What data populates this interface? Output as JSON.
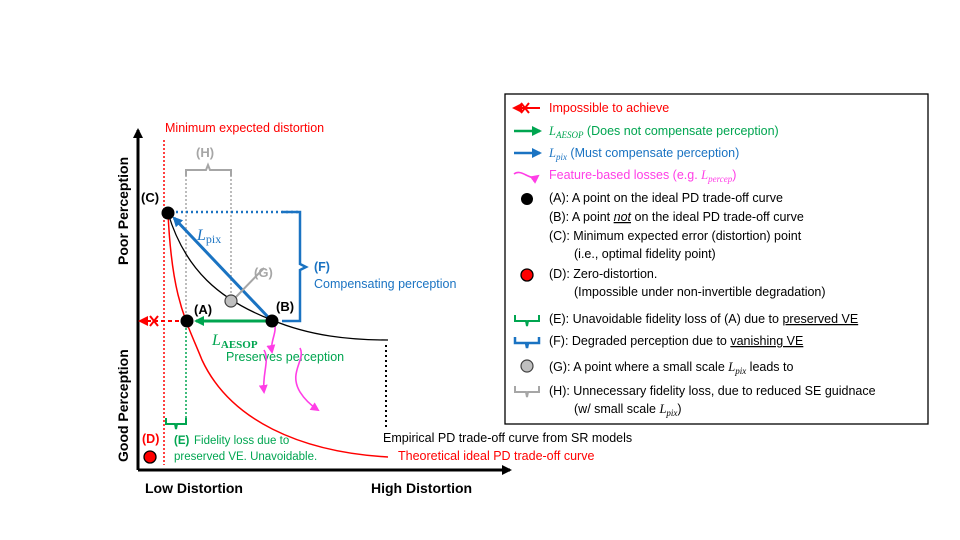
{
  "axes": {
    "y_top": "Poor Perception",
    "y_bottom": "Good Perception",
    "x_left": "Low Distortion",
    "x_right": "High Distortion"
  },
  "min_distortion_label": "Minimum expected distortion",
  "points": {
    "A": "(A)",
    "B": "(B)",
    "C": "(C)",
    "D": "(D)",
    "G": "(G)",
    "H": "(H)"
  },
  "annotations": {
    "l_pix": "L",
    "l_pix_sub": "pix",
    "l_aesop": "L",
    "l_aesop_sub": "AESOP",
    "preserves": "Preserves perception",
    "f_tag": "(F)",
    "f_text": "Compensating perception",
    "e_tag": "(E)",
    "e_line1": "Fidelity loss due to",
    "e_line2": "preserved VE. Unavoidable.",
    "empirical": "Empirical PD trade-off curve from SR models",
    "theoretical": "Theoretical ideal PD trade-off curve"
  },
  "legend": {
    "impossible": "Impossible to achieve",
    "aesop_main": "L",
    "aesop_sub": "AESOP",
    "aesop_rest": " (Does not compensate perception)",
    "pix_main": "L",
    "pix_sub": "pix",
    "pix_rest": " (Must compensate perception)",
    "feat_text": "Feature-based losses (e.g. ",
    "feat_L": "L",
    "feat_sub": "percep",
    "feat_close": ")",
    "a_line": "(A): A point on the ideal PD trade-off curve",
    "b_pre": "(B): A point ",
    "b_not": "not",
    "b_post": " on the ideal PD trade-off curve",
    "c_line1": "(C): Minimum expected error (distortion) point",
    "c_line2": "(i.e., optimal fidelity point)",
    "d_line1": "(D): Zero-distortion.",
    "d_line2": "(Impossible under non-invertible degradation)",
    "e_pre": "(E): Unavoidable fidelity loss of (A) due to ",
    "e_ul": "preserved VE",
    "f_pre": "(F): Degraded perception due to ",
    "f_ul": "vanishing VE",
    "g_pre": "(G): A point where a small scale ",
    "g_L": "L",
    "g_sub": "pix",
    "g_post": " leads to",
    "h_line1": "(H): Unnecessary fidelity loss, due to reduced SE guidnace",
    "h_pre": "(w/ small scale ",
    "h_L": "L",
    "h_sub": "pix",
    "h_close": ")"
  },
  "colors": {
    "red": "#ff0000",
    "green": "#00a550",
    "blue": "#1a73c2",
    "magenta": "#ff3ee6",
    "gray": "#a6a6a6",
    "black": "#000000"
  }
}
